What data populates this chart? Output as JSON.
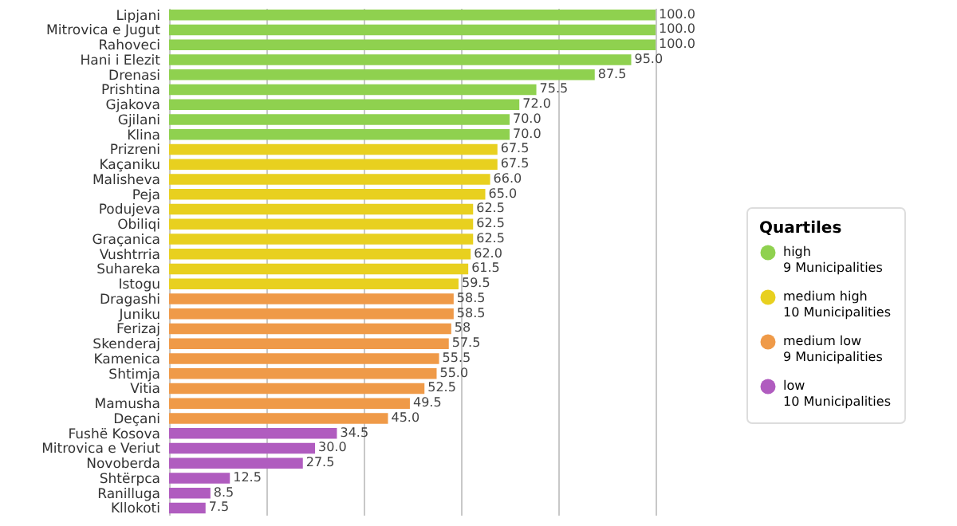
{
  "chart_data": {
    "type": "bar",
    "orientation": "horizontal",
    "legend_title": "Quartiles",
    "legend": "right",
    "categories": [
      "Lipjani",
      "Mitrovica e Jugut",
      "Rahoveci",
      "Hani i Elezit",
      "Drenasi",
      "Prishtina",
      "Gjakova",
      "Gjilani",
      "Klina",
      "Prizreni",
      "Kaçaniku",
      "Malisheva",
      "Peja",
      "Podujeva",
      "Obiliqi",
      "Graçanica",
      "Vushtrria",
      "Suhareka",
      "Istogu",
      "Dragashi",
      "Juniku",
      "Ferizaj",
      "Skenderaj",
      "Kamenica",
      "Shtimja",
      "Vitia",
      "Mamusha",
      "Deçani",
      "Fushë Kosova",
      "Mitrovica e Veriut",
      "Novoberda",
      "Shtërpca",
      "Ranilluga",
      "Kllokoti"
    ],
    "series": [
      {
        "name": "high\n9 Municipalities",
        "color": "#8fd14f",
        "values": [
          100,
          100,
          100,
          95,
          87.5,
          75.5,
          72,
          70,
          70,
          null,
          null,
          null,
          null,
          null,
          null,
          null,
          null,
          null,
          null,
          null,
          null,
          null,
          null,
          null,
          null,
          null,
          null,
          null,
          null,
          null,
          null,
          null,
          null,
          null
        ],
        "value_labels": [
          "100.0",
          "100.0",
          "100.0",
          "95.0",
          "87.5",
          "75.5",
          "72.0",
          "70.0",
          "70.0",
          null,
          null,
          null,
          null,
          null,
          null,
          null,
          null,
          null,
          null,
          null,
          null,
          null,
          null,
          null,
          null,
          null,
          null,
          null,
          null,
          null,
          null,
          null,
          null,
          null
        ]
      },
      {
        "name": "medium high\n10 Municipalities",
        "color": "#e8d01f",
        "values": [
          null,
          null,
          null,
          null,
          null,
          null,
          null,
          null,
          null,
          67.5,
          67.5,
          66,
          65,
          62.5,
          62.5,
          62.5,
          62,
          61.5,
          59.5,
          null,
          null,
          null,
          null,
          null,
          null,
          null,
          null,
          null,
          null,
          null,
          null,
          null,
          null,
          null
        ],
        "value_labels": [
          null,
          null,
          null,
          null,
          null,
          null,
          null,
          null,
          null,
          "67.5",
          "67.5",
          "66.0",
          "65.0",
          "62.5",
          "62.5",
          "62.5",
          "62.0",
          "61.5",
          "59.5",
          null,
          null,
          null,
          null,
          null,
          null,
          null,
          null,
          null,
          null,
          null,
          null,
          null,
          null,
          null
        ]
      },
      {
        "name": "medium low\n9 Municipalities",
        "color": "#ef9a48",
        "values": [
          null,
          null,
          null,
          null,
          null,
          null,
          null,
          null,
          null,
          null,
          null,
          null,
          null,
          null,
          null,
          null,
          null,
          null,
          null,
          58.5,
          58.5,
          58,
          57.5,
          55.5,
          55,
          52.5,
          49.5,
          45,
          null,
          null,
          null,
          null,
          null,
          null
        ],
        "value_labels": [
          null,
          null,
          null,
          null,
          null,
          null,
          null,
          null,
          null,
          null,
          null,
          null,
          null,
          null,
          null,
          null,
          null,
          null,
          null,
          "58.5",
          "58.5",
          "58",
          "57.5",
          "55.5",
          "55.0",
          "52.5",
          "49.5",
          "45.0",
          null,
          null,
          null,
          null,
          null,
          null
        ]
      },
      {
        "name": "low\n10 Municipalities",
        "color": "#b05cbf",
        "values": [
          null,
          null,
          null,
          null,
          null,
          null,
          null,
          null,
          null,
          null,
          null,
          null,
          null,
          null,
          null,
          null,
          null,
          null,
          null,
          null,
          null,
          null,
          null,
          null,
          null,
          null,
          null,
          null,
          34.5,
          30,
          27.5,
          12.5,
          8.5,
          7.5
        ],
        "value_labels": [
          null,
          null,
          null,
          null,
          null,
          null,
          null,
          null,
          null,
          null,
          null,
          null,
          null,
          null,
          null,
          null,
          null,
          null,
          null,
          null,
          null,
          null,
          null,
          null,
          null,
          null,
          null,
          null,
          "34.5",
          "30.0",
          "27.5",
          "12.5",
          "8.5",
          "7.5"
        ]
      }
    ],
    "xlim": [
      0,
      100
    ],
    "xticks": [
      {
        "value": 0,
        "label": null
      },
      {
        "value": 20,
        "label": null
      },
      {
        "value": 40,
        "label": null
      },
      {
        "value": 60,
        "label": null
      },
      {
        "value": 80,
        "label": null
      },
      {
        "value": 100,
        "label": null
      }
    ],
    "grid": "x",
    "tick_labels": "y"
  }
}
